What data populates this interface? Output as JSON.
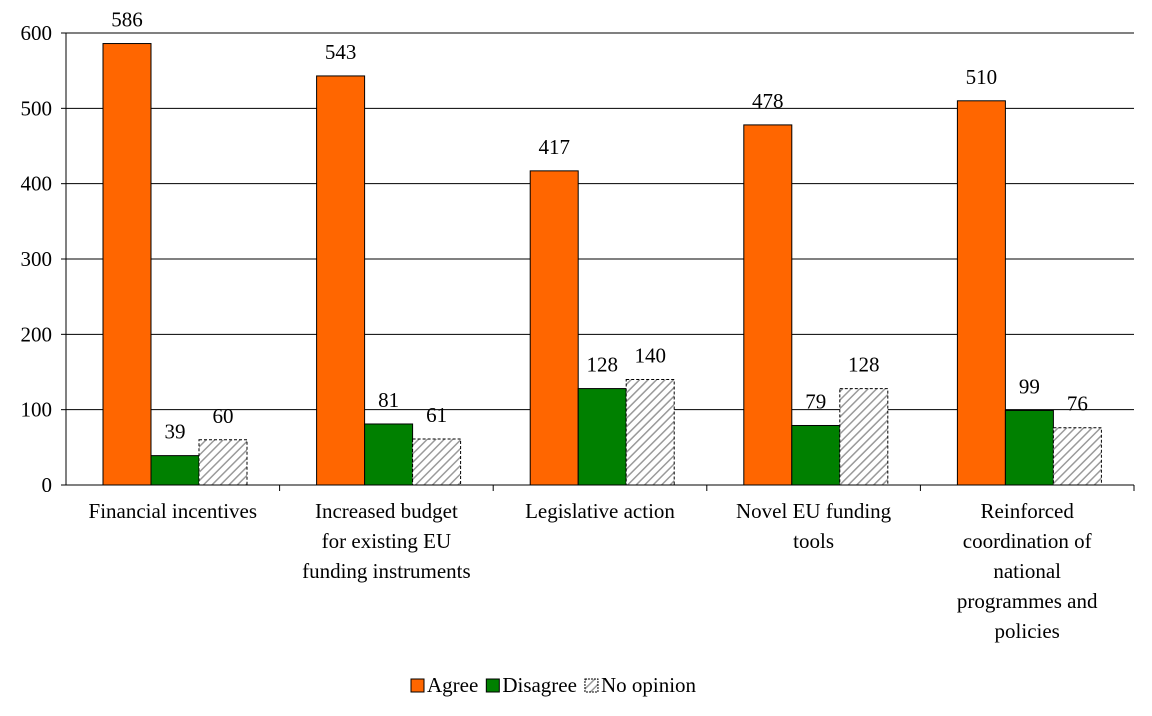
{
  "chart_data": {
    "type": "bar",
    "title": "",
    "xlabel": "",
    "ylabel": "",
    "ylim": [
      0,
      600
    ],
    "yticks": [
      0,
      100,
      200,
      300,
      400,
      500,
      600
    ],
    "grid": true,
    "legend_position": "bottom",
    "categories": [
      [
        "Financial incentives"
      ],
      [
        "Increased budget",
        "for existing EU",
        "funding instruments"
      ],
      [
        "Legislative action"
      ],
      [
        "Novel EU funding",
        "tools"
      ],
      [
        "Reinforced",
        "coordination of",
        "national",
        "programmes and",
        "policies"
      ]
    ],
    "series": [
      {
        "name": "Agree",
        "color": "#FF6600",
        "pattern": "solid",
        "values": [
          586,
          543,
          417,
          478,
          510
        ]
      },
      {
        "name": "Disagree",
        "color": "#008000",
        "pattern": "solid",
        "values": [
          39,
          81,
          128,
          79,
          99
        ]
      },
      {
        "name": "No opinion",
        "color": "#C0C0C0",
        "pattern": "hatched",
        "values": [
          60,
          61,
          140,
          128,
          76
        ]
      }
    ]
  }
}
